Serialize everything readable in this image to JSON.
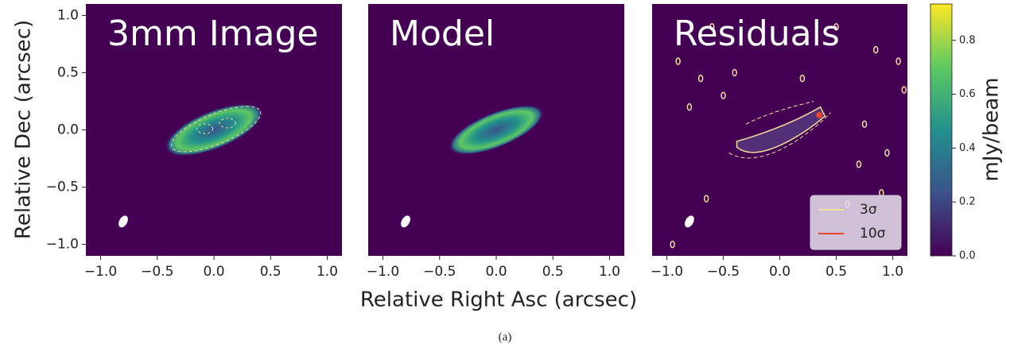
{
  "caption": "(a)",
  "chart_data": [
    {
      "type": "image",
      "title": "3mm Image",
      "ylabel": "Relative Dec (arcsec)",
      "xlim": [
        -1.13,
        1.13
      ],
      "ylim": [
        -1.1,
        1.1
      ],
      "xticks": [
        {
          "value": -1,
          "label": "−1.0"
        },
        {
          "value": -0.5,
          "label": "−0.5"
        },
        {
          "value": 0,
          "label": "0.0"
        },
        0.5,
        {
          "value": 1,
          "label": "1.0"
        }
      ],
      "yticks": [
        {
          "value": -1,
          "label": "−1.0"
        },
        {
          "value": -0.5,
          "label": "−0.5"
        },
        {
          "value": 0,
          "label": "0.0"
        },
        0.5,
        {
          "value": 1,
          "label": "1.0"
        }
      ]
    },
    {
      "type": "image",
      "title": "Model",
      "xlabel": "Relative Right Asc (arcsec)",
      "xlim": [
        -1.13,
        1.13
      ],
      "ylim": [
        -1.1,
        1.1
      ],
      "xticks": [
        {
          "value": -1,
          "label": "−1.0"
        },
        {
          "value": -0.5,
          "label": "−0.5"
        },
        {
          "value": 0,
          "label": "0.0"
        },
        0.5,
        {
          "value": 1,
          "label": "1.0"
        }
      ]
    },
    {
      "type": "image",
      "title": "Residuals",
      "xlim": [
        -1.13,
        1.13
      ],
      "ylim": [
        -1.1,
        1.1
      ],
      "xticks": [
        {
          "value": -1,
          "label": "−1.0"
        },
        {
          "value": -0.5,
          "label": "−0.5"
        },
        {
          "value": 0,
          "label": "0.0"
        },
        0.5,
        {
          "value": 1,
          "label": "1.0"
        }
      ],
      "legend": "lower right",
      "series": [
        {
          "name": "3σ",
          "color": "#f3df9a"
        },
        {
          "name": "10σ",
          "color": "#e8432f"
        }
      ]
    },
    {
      "type": "colorbar",
      "ylabel": "mJy/beam",
      "ylim": [
        0,
        0.935
      ],
      "colors": [
        "#440154",
        "#3b528b",
        "#21918c",
        "#5ec962",
        "#fde725"
      ],
      "yticks": [
        {
          "value": 0,
          "label": "0.0"
        },
        0.2,
        0.4,
        0.6,
        0.8
      ]
    }
  ]
}
